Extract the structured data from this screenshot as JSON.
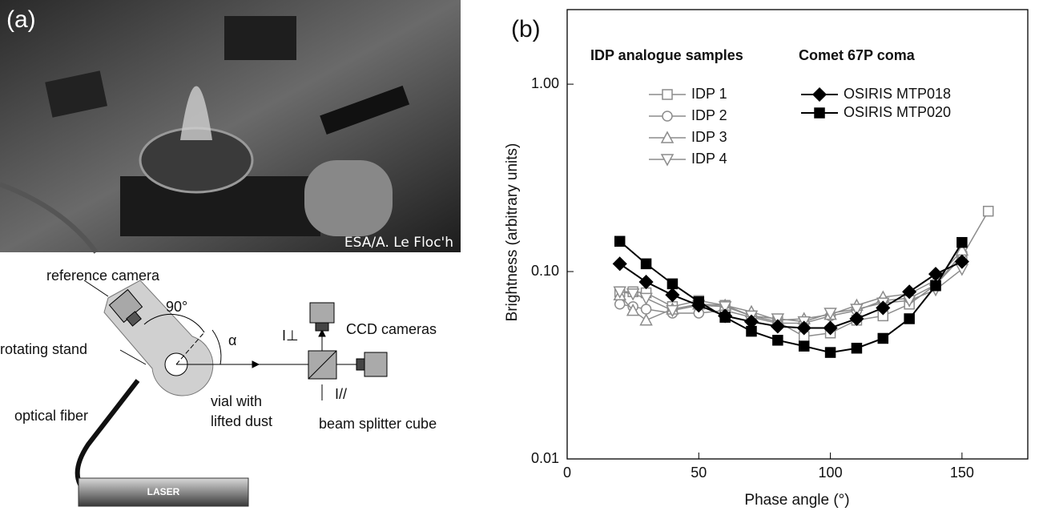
{
  "panel_a": {
    "label": "(a)",
    "credit": "ESA/A. Le Floc'h",
    "diagram": {
      "reference_camera": "reference camera",
      "angle_90": "90°",
      "alpha": "α",
      "rotating_stand": "rotating stand",
      "i_perp": "I⊥",
      "ccd_cameras": "CCD cameras",
      "optical_fiber": "optical fiber",
      "vial": [
        "vial with",
        "lifted dust"
      ],
      "i_par": "I//",
      "beam_splitter": "beam splitter cube",
      "laser": "LASER"
    }
  },
  "chart_data": {
    "type": "line",
    "panel_label": "(b)",
    "x_label": "Phase angle (°)",
    "y_label": "Brightness (arbitrary units)",
    "xlim": [
      0,
      175
    ],
    "xticks": [
      0,
      50,
      100,
      150
    ],
    "ylim": [
      0.01,
      2.5
    ],
    "log_y": true,
    "yticks": [
      0.01,
      {
        "value": 0.1,
        "label": "0.10"
      },
      {
        "value": 1,
        "label": "1.00"
      }
    ],
    "legend_titles": [
      "IDP analogue samples",
      "Comet 67P coma"
    ],
    "series": [
      {
        "name": "IDP 1",
        "color": "#8c8c8c",
        "marker": "square-open",
        "group": 0,
        "x": [
          20,
          25,
          30,
          40,
          50,
          60,
          70,
          80,
          90,
          100,
          110,
          120,
          130,
          140,
          150,
          160
        ],
        "values": [
          0.078,
          0.078,
          0.077,
          0.065,
          0.07,
          0.066,
          0.058,
          0.054,
          0.045,
          0.047,
          0.055,
          0.058,
          0.067,
          0.085,
          0.12,
          0.21
        ]
      },
      {
        "name": "IDP 2",
        "color": "#8c8c8c",
        "marker": "circle-open",
        "group": 0,
        "x": [
          20,
          25,
          30,
          40,
          50,
          60,
          70,
          80,
          90,
          100,
          110,
          120,
          130,
          140,
          150
        ],
        "values": [
          0.067,
          0.065,
          0.063,
          0.06,
          0.06,
          0.062,
          0.057,
          0.053,
          0.053,
          0.058,
          0.062,
          0.07,
          0.072,
          0.085,
          0.125
        ]
      },
      {
        "name": "IDP 3",
        "color": "#8c8c8c",
        "marker": "triangle-up-open",
        "group": 0,
        "x": [
          20,
          25,
          30,
          40,
          50,
          60,
          70,
          80,
          90,
          100,
          110,
          120,
          130,
          140,
          150
        ],
        "values": [
          0.075,
          0.062,
          0.055,
          0.063,
          0.067,
          0.066,
          0.061,
          0.055,
          0.056,
          0.059,
          0.066,
          0.073,
          0.076,
          0.09,
          0.13
        ]
      },
      {
        "name": "IDP 4",
        "color": "#8c8c8c",
        "marker": "triangle-down-open",
        "group": 0,
        "x": [
          20,
          25,
          30,
          40,
          50,
          60,
          70,
          80,
          90,
          100,
          110,
          120,
          130,
          140,
          150
        ],
        "values": [
          0.078,
          0.076,
          0.072,
          0.062,
          0.066,
          0.065,
          0.058,
          0.056,
          0.054,
          0.06,
          0.063,
          0.068,
          0.07,
          0.08,
          0.103
        ]
      },
      {
        "name": "OSIRIS MTP018",
        "color": "#000000",
        "marker": "diamond",
        "group": 1,
        "x": [
          20,
          30,
          40,
          50,
          60,
          70,
          80,
          90,
          100,
          110,
          120,
          130,
          140,
          150
        ],
        "values": [
          0.11,
          0.088,
          0.075,
          0.066,
          0.058,
          0.054,
          0.051,
          0.05,
          0.05,
          0.056,
          0.064,
          0.078,
          0.097,
          0.113
        ]
      },
      {
        "name": "OSIRIS MTP020",
        "color": "#000000",
        "marker": "square",
        "group": 1,
        "x": [
          20,
          30,
          40,
          50,
          60,
          70,
          80,
          90,
          100,
          110,
          120,
          130,
          140,
          150
        ],
        "values": [
          0.145,
          0.11,
          0.086,
          0.069,
          0.057,
          0.048,
          0.043,
          0.04,
          0.037,
          0.039,
          0.044,
          0.056,
          0.084,
          0.143
        ]
      }
    ]
  }
}
